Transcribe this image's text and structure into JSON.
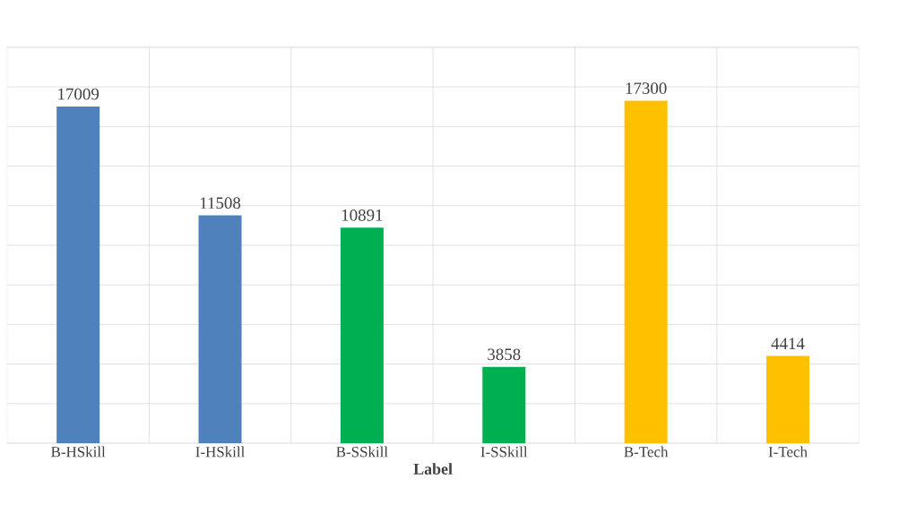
{
  "chart_data": {
    "type": "bar",
    "xlabel": "Label",
    "categories": [
      "B-HSkill",
      "I-HSkill",
      "B-SSkill",
      "I-SSkill",
      "B-Tech",
      "I-Tech"
    ],
    "values": [
      17009,
      11508,
      10891,
      3858,
      17300,
      4414
    ],
    "colors": [
      "#4f81bd",
      "#4f81bd",
      "#00b050",
      "#00b050",
      "#ffc000",
      "#ffc000"
    ],
    "ylim": [
      0,
      20000
    ],
    "yticks": [
      {
        "value": 0,
        "label": null
      },
      {
        "value": 2000,
        "label": null
      },
      {
        "value": 4000,
        "label": null
      },
      {
        "value": 6000,
        "label": null
      },
      {
        "value": 8000,
        "label": null
      },
      {
        "value": 10000,
        "label": null
      },
      {
        "value": 12000,
        "label": null
      },
      {
        "value": 14000,
        "label": null
      },
      {
        "value": 16000,
        "label": null
      },
      {
        "value": 18000,
        "label": null
      },
      {
        "value": 20000,
        "label": null
      }
    ],
    "grid": true,
    "tick_labels": "x",
    "data_labels": true
  }
}
